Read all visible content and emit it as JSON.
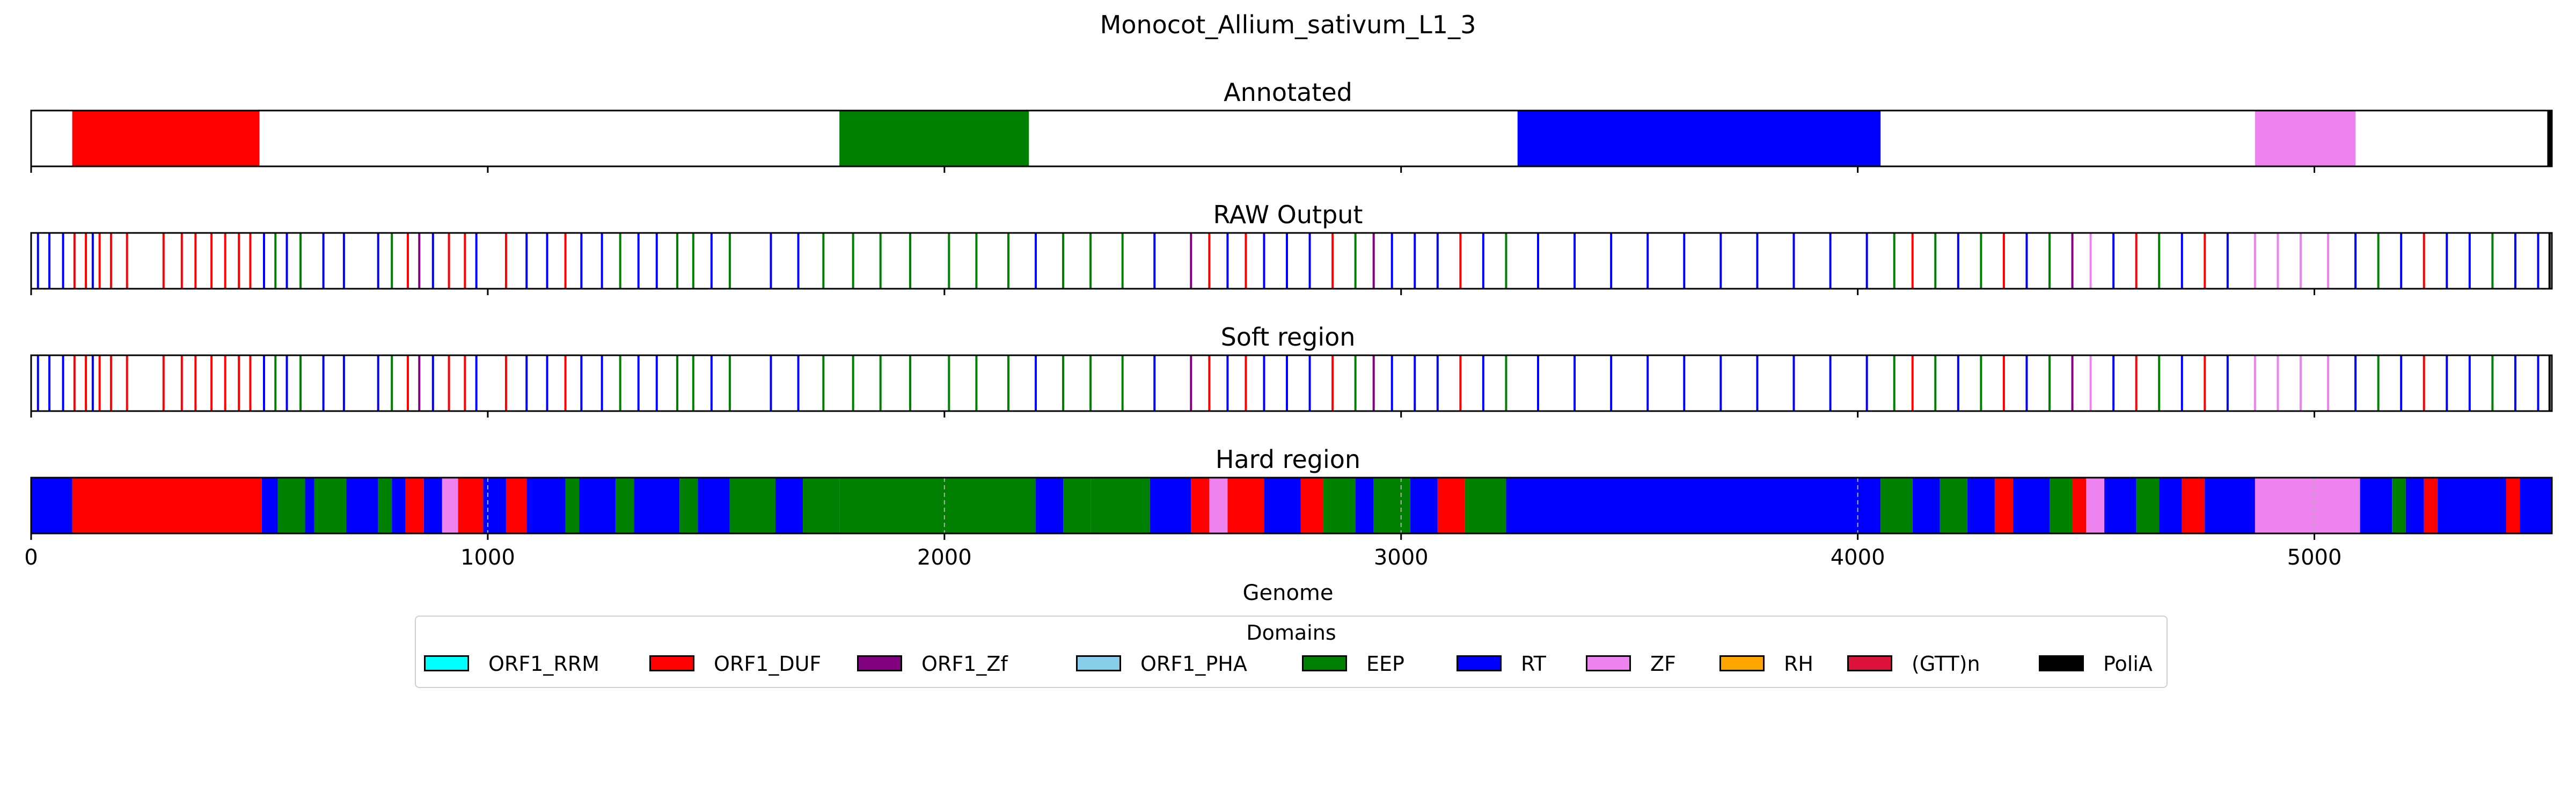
{
  "chart_data": {
    "type": "genome-track",
    "title": "Monocot_Allium_sativum_L1_3",
    "xlabel": "Genome",
    "xlim": [
      0,
      5520
    ],
    "xticks": [
      0,
      1000,
      2000,
      3000,
      4000,
      5000
    ],
    "xtick_labels": [
      "0",
      "1000",
      "2000",
      "3000",
      "4000",
      "5000"
    ],
    "colors": {
      "ORF1_RRM": "#00ffff",
      "ORF1_DUF": "#ff0000",
      "ORF1_Zf": "#800080",
      "ORF1_PHA": "#87ceeb",
      "EEP": "#008000",
      "RT": "#0000ff",
      "ZF": "#ee82ee",
      "RH": "#ffa500",
      "(GTT)n": "#dc143c",
      "PoliA": "#000000"
    },
    "legend": {
      "title": "Domains",
      "placement": "below",
      "items": [
        "ORF1_RRM",
        "ORF1_DUF",
        "ORF1_Zf",
        "ORF1_PHA",
        "EEP",
        "RT",
        "ZF",
        "RH",
        "(GTT)n",
        "PoliA"
      ]
    },
    "panels": [
      {
        "title": "Annotated",
        "segments": [
          {
            "start": 90,
            "end": 500,
            "domain": "ORF1_DUF"
          },
          {
            "start": 1770,
            "end": 2185,
            "domain": "EEP"
          },
          {
            "start": 3255,
            "end": 4050,
            "domain": "RT"
          },
          {
            "start": 4870,
            "end": 5090,
            "domain": "ZF"
          },
          {
            "start": 5510,
            "end": 5520,
            "domain": "PoliA"
          }
        ]
      },
      {
        "title": "RAW Output",
        "marks": [
          {
            "pos": 15,
            "domain": "RT"
          },
          {
            "pos": 40,
            "domain": "RT"
          },
          {
            "pos": 70,
            "domain": "RT"
          },
          {
            "pos": 95,
            "domain": "ORF1_DUF"
          },
          {
            "pos": 120,
            "domain": "ORF1_DUF"
          },
          {
            "pos": 135,
            "domain": "RT"
          },
          {
            "pos": 150,
            "domain": "ORF1_DUF"
          },
          {
            "pos": 175,
            "domain": "ORF1_DUF"
          },
          {
            "pos": 210,
            "domain": "ORF1_DUF"
          },
          {
            "pos": 290,
            "domain": "ORF1_DUF"
          },
          {
            "pos": 330,
            "domain": "ORF1_DUF"
          },
          {
            "pos": 360,
            "domain": "ORF1_DUF"
          },
          {
            "pos": 395,
            "domain": "ORF1_DUF"
          },
          {
            "pos": 425,
            "domain": "ORF1_DUF"
          },
          {
            "pos": 455,
            "domain": "ORF1_DUF"
          },
          {
            "pos": 480,
            "domain": "ORF1_DUF"
          },
          {
            "pos": 510,
            "domain": "RT"
          },
          {
            "pos": 535,
            "domain": "EEP"
          },
          {
            "pos": 560,
            "domain": "RT"
          },
          {
            "pos": 590,
            "domain": "EEP"
          },
          {
            "pos": 640,
            "domain": "RT"
          },
          {
            "pos": 685,
            "domain": "RT"
          },
          {
            "pos": 760,
            "domain": "RT"
          },
          {
            "pos": 790,
            "domain": "EEP"
          },
          {
            "pos": 825,
            "domain": "ORF1_DUF"
          },
          {
            "pos": 850,
            "domain": "ORF1_Zf"
          },
          {
            "pos": 880,
            "domain": "RT"
          },
          {
            "pos": 915,
            "domain": "ORF1_DUF"
          },
          {
            "pos": 950,
            "domain": "ORF1_DUF"
          },
          {
            "pos": 975,
            "domain": "RT"
          },
          {
            "pos": 1040,
            "domain": "ORF1_DUF"
          },
          {
            "pos": 1085,
            "domain": "RT"
          },
          {
            "pos": 1130,
            "domain": "RT"
          },
          {
            "pos": 1170,
            "domain": "ORF1_DUF"
          },
          {
            "pos": 1205,
            "domain": "RT"
          },
          {
            "pos": 1250,
            "domain": "RT"
          },
          {
            "pos": 1290,
            "domain": "EEP"
          },
          {
            "pos": 1330,
            "domain": "RT"
          },
          {
            "pos": 1370,
            "domain": "RT"
          },
          {
            "pos": 1415,
            "domain": "EEP"
          },
          {
            "pos": 1450,
            "domain": "EEP"
          },
          {
            "pos": 1490,
            "domain": "RT"
          },
          {
            "pos": 1530,
            "domain": "EEP"
          },
          {
            "pos": 1620,
            "domain": "RT"
          },
          {
            "pos": 1680,
            "domain": "RT"
          },
          {
            "pos": 1735,
            "domain": "EEP"
          },
          {
            "pos": 1800,
            "domain": "EEP"
          },
          {
            "pos": 1860,
            "domain": "EEP"
          },
          {
            "pos": 1925,
            "domain": "EEP"
          },
          {
            "pos": 2010,
            "domain": "EEP"
          },
          {
            "pos": 2070,
            "domain": "EEP"
          },
          {
            "pos": 2140,
            "domain": "EEP"
          },
          {
            "pos": 2200,
            "domain": "RT"
          },
          {
            "pos": 2260,
            "domain": "EEP"
          },
          {
            "pos": 2320,
            "domain": "EEP"
          },
          {
            "pos": 2390,
            "domain": "EEP"
          },
          {
            "pos": 2460,
            "domain": "RT"
          },
          {
            "pos": 2540,
            "domain": "ORF1_Zf"
          },
          {
            "pos": 2580,
            "domain": "ORF1_DUF"
          },
          {
            "pos": 2620,
            "domain": "RT"
          },
          {
            "pos": 2660,
            "domain": "ORF1_DUF"
          },
          {
            "pos": 2700,
            "domain": "RT"
          },
          {
            "pos": 2750,
            "domain": "RT"
          },
          {
            "pos": 2800,
            "domain": "RT"
          },
          {
            "pos": 2850,
            "domain": "ORF1_DUF"
          },
          {
            "pos": 2900,
            "domain": "EEP"
          },
          {
            "pos": 2940,
            "domain": "ORF1_Zf"
          },
          {
            "pos": 2980,
            "domain": "RT"
          },
          {
            "pos": 3030,
            "domain": "RT"
          },
          {
            "pos": 3080,
            "domain": "RT"
          },
          {
            "pos": 3130,
            "domain": "ORF1_DUF"
          },
          {
            "pos": 3180,
            "domain": "RT"
          },
          {
            "pos": 3230,
            "domain": "EEP"
          },
          {
            "pos": 3300,
            "domain": "RT"
          },
          {
            "pos": 3380,
            "domain": "RT"
          },
          {
            "pos": 3460,
            "domain": "RT"
          },
          {
            "pos": 3540,
            "domain": "RT"
          },
          {
            "pos": 3620,
            "domain": "RT"
          },
          {
            "pos": 3700,
            "domain": "RT"
          },
          {
            "pos": 3780,
            "domain": "RT"
          },
          {
            "pos": 3860,
            "domain": "RT"
          },
          {
            "pos": 3940,
            "domain": "RT"
          },
          {
            "pos": 4020,
            "domain": "RT"
          },
          {
            "pos": 4080,
            "domain": "EEP"
          },
          {
            "pos": 4120,
            "domain": "ORF1_DUF"
          },
          {
            "pos": 4170,
            "domain": "EEP"
          },
          {
            "pos": 4220,
            "domain": "RT"
          },
          {
            "pos": 4270,
            "domain": "EEP"
          },
          {
            "pos": 4320,
            "domain": "ORF1_DUF"
          },
          {
            "pos": 4370,
            "domain": "RT"
          },
          {
            "pos": 4420,
            "domain": "EEP"
          },
          {
            "pos": 4470,
            "domain": "ORF1_Zf"
          },
          {
            "pos": 4510,
            "domain": "ZF"
          },
          {
            "pos": 4560,
            "domain": "RT"
          },
          {
            "pos": 4610,
            "domain": "ORF1_DUF"
          },
          {
            "pos": 4660,
            "domain": "EEP"
          },
          {
            "pos": 4710,
            "domain": "RT"
          },
          {
            "pos": 4760,
            "domain": "ORF1_DUF"
          },
          {
            "pos": 4810,
            "domain": "RT"
          },
          {
            "pos": 4870,
            "domain": "ZF"
          },
          {
            "pos": 4920,
            "domain": "ZF"
          },
          {
            "pos": 4970,
            "domain": "ZF"
          },
          {
            "pos": 5030,
            "domain": "ZF"
          },
          {
            "pos": 5090,
            "domain": "RT"
          },
          {
            "pos": 5140,
            "domain": "EEP"
          },
          {
            "pos": 5190,
            "domain": "RT"
          },
          {
            "pos": 5240,
            "domain": "ORF1_DUF"
          },
          {
            "pos": 5290,
            "domain": "RT"
          },
          {
            "pos": 5340,
            "domain": "RT"
          },
          {
            "pos": 5390,
            "domain": "EEP"
          },
          {
            "pos": 5440,
            "domain": "RT"
          },
          {
            "pos": 5490,
            "domain": "RT"
          },
          {
            "pos": 5515,
            "domain": "PoliA"
          }
        ]
      },
      {
        "title": "Soft region",
        "marks_same_as": "RAW Output"
      },
      {
        "title": "Hard region",
        "segments": [
          {
            "start": 0,
            "end": 90,
            "domain": "RT"
          },
          {
            "start": 90,
            "end": 505,
            "domain": "ORF1_DUF"
          },
          {
            "start": 505,
            "end": 540,
            "domain": "RT"
          },
          {
            "start": 540,
            "end": 600,
            "domain": "EEP"
          },
          {
            "start": 600,
            "end": 620,
            "domain": "RT"
          },
          {
            "start": 620,
            "end": 690,
            "domain": "EEP"
          },
          {
            "start": 690,
            "end": 760,
            "domain": "RT"
          },
          {
            "start": 760,
            "end": 790,
            "domain": "EEP"
          },
          {
            "start": 790,
            "end": 820,
            "domain": "RT"
          },
          {
            "start": 820,
            "end": 860,
            "domain": "ORF1_DUF"
          },
          {
            "start": 860,
            "end": 900,
            "domain": "RT"
          },
          {
            "start": 900,
            "end": 935,
            "domain": "ZF"
          },
          {
            "start": 935,
            "end": 990,
            "domain": "ORF1_DUF"
          },
          {
            "start": 990,
            "end": 1040,
            "domain": "RT"
          },
          {
            "start": 1040,
            "end": 1085,
            "domain": "ORF1_DUF"
          },
          {
            "start": 1085,
            "end": 1170,
            "domain": "RT"
          },
          {
            "start": 1170,
            "end": 1200,
            "domain": "EEP"
          },
          {
            "start": 1200,
            "end": 1280,
            "domain": "RT"
          },
          {
            "start": 1280,
            "end": 1320,
            "domain": "EEP"
          },
          {
            "start": 1320,
            "end": 1420,
            "domain": "RT"
          },
          {
            "start": 1420,
            "end": 1460,
            "domain": "EEP"
          },
          {
            "start": 1460,
            "end": 1530,
            "domain": "RT"
          },
          {
            "start": 1530,
            "end": 1630,
            "domain": "EEP"
          },
          {
            "start": 1630,
            "end": 1690,
            "domain": "RT"
          },
          {
            "start": 1690,
            "end": 1770,
            "domain": "EEP"
          },
          {
            "start": 1770,
            "end": 2200,
            "domain": "EEP"
          },
          {
            "start": 2200,
            "end": 2260,
            "domain": "RT"
          },
          {
            "start": 2260,
            "end": 2320,
            "domain": "EEP"
          },
          {
            "start": 2320,
            "end": 2450,
            "domain": "EEP"
          },
          {
            "start": 2450,
            "end": 2540,
            "domain": "RT"
          },
          {
            "start": 2540,
            "end": 2580,
            "domain": "ORF1_DUF"
          },
          {
            "start": 2580,
            "end": 2620,
            "domain": "ZF"
          },
          {
            "start": 2620,
            "end": 2700,
            "domain": "ORF1_DUF"
          },
          {
            "start": 2700,
            "end": 2780,
            "domain": "RT"
          },
          {
            "start": 2780,
            "end": 2830,
            "domain": "ORF1_DUF"
          },
          {
            "start": 2830,
            "end": 2900,
            "domain": "EEP"
          },
          {
            "start": 2900,
            "end": 2940,
            "domain": "RT"
          },
          {
            "start": 2940,
            "end": 3020,
            "domain": "EEP"
          },
          {
            "start": 3020,
            "end": 3080,
            "domain": "RT"
          },
          {
            "start": 3080,
            "end": 3140,
            "domain": "ORF1_DUF"
          },
          {
            "start": 3140,
            "end": 3230,
            "domain": "EEP"
          },
          {
            "start": 3230,
            "end": 4050,
            "domain": "RT"
          },
          {
            "start": 4050,
            "end": 4120,
            "domain": "EEP"
          },
          {
            "start": 4120,
            "end": 4180,
            "domain": "RT"
          },
          {
            "start": 4180,
            "end": 4240,
            "domain": "EEP"
          },
          {
            "start": 4240,
            "end": 4300,
            "domain": "RT"
          },
          {
            "start": 4300,
            "end": 4340,
            "domain": "ORF1_DUF"
          },
          {
            "start": 4340,
            "end": 4420,
            "domain": "RT"
          },
          {
            "start": 4420,
            "end": 4470,
            "domain": "EEP"
          },
          {
            "start": 4470,
            "end": 4500,
            "domain": "ORF1_DUF"
          },
          {
            "start": 4500,
            "end": 4540,
            "domain": "ZF"
          },
          {
            "start": 4540,
            "end": 4610,
            "domain": "RT"
          },
          {
            "start": 4610,
            "end": 4660,
            "domain": "EEP"
          },
          {
            "start": 4660,
            "end": 4710,
            "domain": "RT"
          },
          {
            "start": 4710,
            "end": 4760,
            "domain": "ORF1_DUF"
          },
          {
            "start": 4760,
            "end": 4870,
            "domain": "RT"
          },
          {
            "start": 4870,
            "end": 5100,
            "domain": "ZF"
          },
          {
            "start": 5100,
            "end": 5170,
            "domain": "RT"
          },
          {
            "start": 5170,
            "end": 5200,
            "domain": "EEP"
          },
          {
            "start": 5200,
            "end": 5240,
            "domain": "RT"
          },
          {
            "start": 5240,
            "end": 5270,
            "domain": "ORF1_DUF"
          },
          {
            "start": 5270,
            "end": 5420,
            "domain": "RT"
          },
          {
            "start": 5420,
            "end": 5450,
            "domain": "ORF1_DUF"
          },
          {
            "start": 5450,
            "end": 5520,
            "domain": "RT"
          }
        ]
      }
    ]
  }
}
